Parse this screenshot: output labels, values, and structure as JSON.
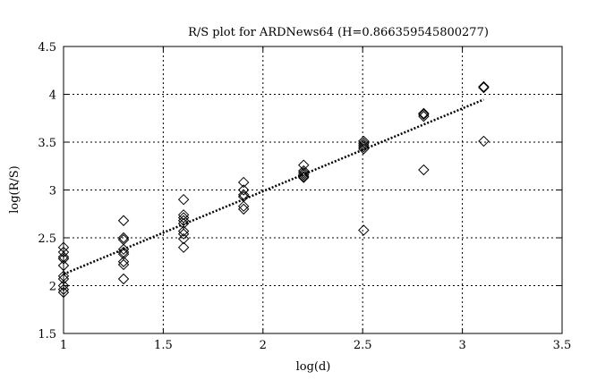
{
  "chart_data": {
    "type": "scatter",
    "title": "R/S plot for ARDNews64 (H=0.866359545800277)",
    "xlabel": "log(d)",
    "ylabel": "log(R/S)",
    "xlim": [
      1,
      3.5
    ],
    "ylim": [
      1.5,
      4.5
    ],
    "xticks": [
      "1",
      "1.5",
      "2",
      "2.5",
      "3",
      "3.5"
    ],
    "yticks": [
      "1.5",
      "2",
      "2.5",
      "3",
      "3.5",
      "4",
      "4.5"
    ],
    "grid": true,
    "marker": "diamond",
    "points": [
      {
        "x": 1.0,
        "y": [
          2.4,
          2.35,
          2.3,
          2.28,
          2.21,
          2.1,
          2.07,
          2.0,
          1.96,
          1.93
        ]
      },
      {
        "x": 1.301,
        "y": [
          2.68,
          2.5,
          2.48,
          2.38,
          2.35,
          2.33,
          2.25,
          2.22,
          2.07
        ]
      },
      {
        "x": 1.602,
        "y": [
          2.9,
          2.74,
          2.71,
          2.68,
          2.65,
          2.57,
          2.54,
          2.49,
          2.4
        ]
      },
      {
        "x": 1.903,
        "y": [
          3.08,
          3.0,
          2.95,
          2.93,
          2.83,
          2.8
        ]
      },
      {
        "x": 2.204,
        "y": [
          3.26,
          3.2,
          3.18,
          3.16,
          3.14,
          3.13
        ]
      },
      {
        "x": 2.505,
        "y": [
          3.51,
          3.49,
          3.47,
          3.45,
          3.43,
          2.58
        ]
      },
      {
        "x": 2.806,
        "y": [
          3.8,
          3.79,
          3.77,
          3.21
        ]
      },
      {
        "x": 3.107,
        "y": [
          4.08,
          4.07,
          3.51
        ]
      }
    ],
    "fit_line": {
      "x": [
        1.0,
        3.107
      ],
      "y": [
        2.12,
        3.945
      ],
      "style": "dotted"
    }
  }
}
